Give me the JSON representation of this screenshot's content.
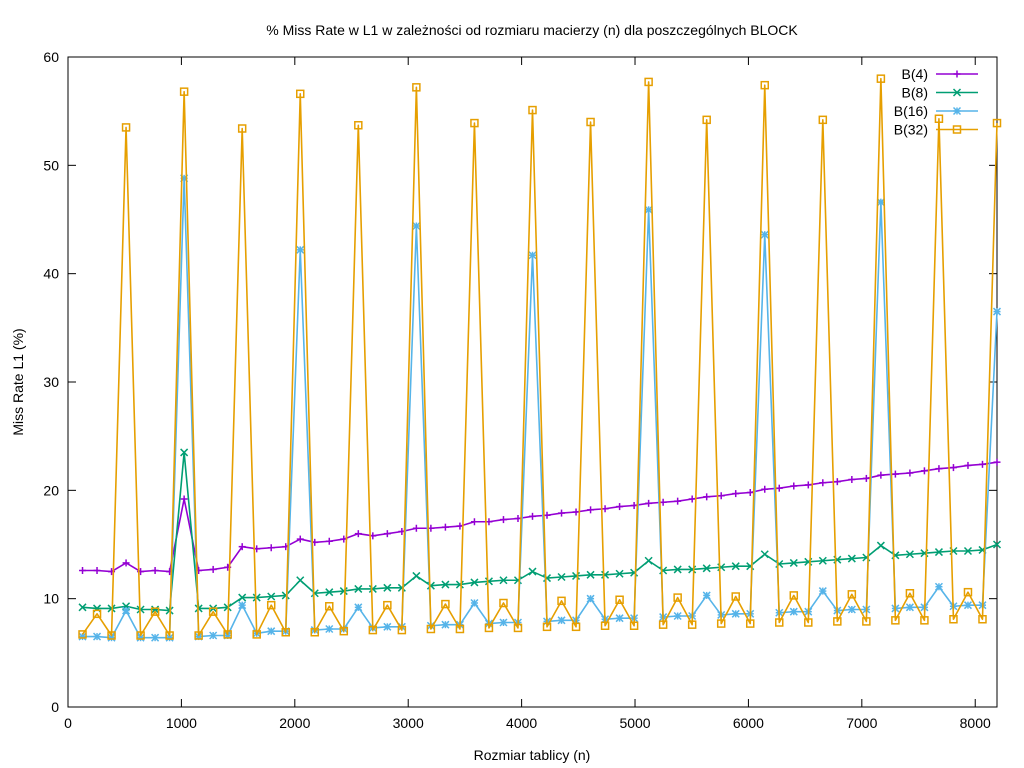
{
  "chart_data": {
    "type": "line",
    "title": "% Miss Rate w L1 w zależności od rozmiaru macierzy (n) dla poszczególnych BLOCK",
    "xlabel": "Rozmiar tablicy (n)",
    "ylabel": "Miss Rate L1 (%)",
    "xlim": [
      0,
      8192
    ],
    "ylim": [
      0,
      60
    ],
    "xticks": [
      0,
      1000,
      2000,
      3000,
      4000,
      5000,
      6000,
      7000,
      8000
    ],
    "yticks": [
      0,
      10,
      20,
      30,
      40,
      50,
      60
    ],
    "grid": false,
    "legend_position": "top-right",
    "x": [
      128,
      256,
      384,
      512,
      640,
      768,
      896,
      1024,
      1152,
      1280,
      1408,
      1536,
      1664,
      1792,
      1920,
      2048,
      2176,
      2304,
      2432,
      2560,
      2688,
      2816,
      2944,
      3072,
      3200,
      3328,
      3456,
      3584,
      3712,
      3840,
      3968,
      4096,
      4224,
      4352,
      4480,
      4608,
      4736,
      4864,
      4992,
      5120,
      5248,
      5376,
      5504,
      5632,
      5760,
      5888,
      6016,
      6144,
      6272,
      6400,
      6528,
      6656,
      6784,
      6912,
      7040,
      7168,
      7296,
      7424,
      7552,
      7680,
      7808,
      7936,
      8064,
      8192
    ],
    "series": [
      {
        "name": "B(4)",
        "color": "#9400d3",
        "marker": "plus",
        "values": [
          12.6,
          12.6,
          12.5,
          13.3,
          12.5,
          12.6,
          12.5,
          19.2,
          12.6,
          12.7,
          12.9,
          14.8,
          14.6,
          14.7,
          14.8,
          15.5,
          15.2,
          15.3,
          15.5,
          16.0,
          15.8,
          16.0,
          16.2,
          16.5,
          16.5,
          16.6,
          16.7,
          17.1,
          17.1,
          17.3,
          17.4,
          17.6,
          17.7,
          17.9,
          18.0,
          18.2,
          18.3,
          18.5,
          18.6,
          18.8,
          18.9,
          19.0,
          19.2,
          19.4,
          19.5,
          19.7,
          19.8,
          20.1,
          20.2,
          20.4,
          20.5,
          20.7,
          20.8,
          21.0,
          21.1,
          21.4,
          21.5,
          21.6,
          21.8,
          22.0,
          22.1,
          22.3,
          22.4,
          22.6
        ]
      },
      {
        "name": "B(8)",
        "color": "#009e73",
        "marker": "cross",
        "values": [
          9.2,
          9.1,
          9.1,
          9.3,
          9.0,
          9.0,
          8.9,
          23.5,
          9.1,
          9.1,
          9.2,
          10.1,
          10.1,
          10.2,
          10.3,
          11.7,
          10.5,
          10.6,
          10.7,
          10.9,
          10.9,
          11.0,
          11.0,
          12.1,
          11.2,
          11.3,
          11.3,
          11.5,
          11.6,
          11.7,
          11.7,
          12.5,
          11.9,
          12.0,
          12.1,
          12.2,
          12.2,
          12.3,
          12.4,
          13.5,
          12.6,
          12.7,
          12.7,
          12.8,
          12.9,
          13.0,
          13.0,
          14.1,
          13.2,
          13.3,
          13.4,
          13.5,
          13.6,
          13.7,
          13.8,
          14.9,
          14.0,
          14.1,
          14.2,
          14.3,
          14.4,
          14.4,
          14.5,
          15.0
        ]
      },
      {
        "name": "B(16)",
        "color": "#56b4e9",
        "marker": "star",
        "values": [
          6.5,
          6.5,
          6.4,
          8.9,
          6.4,
          6.4,
          6.4,
          48.8,
          6.5,
          6.6,
          6.6,
          9.4,
          6.8,
          7.0,
          7.0,
          42.2,
          7.1,
          7.2,
          7.2,
          9.2,
          7.3,
          7.4,
          7.4,
          44.4,
          7.5,
          7.6,
          7.6,
          9.6,
          7.7,
          7.8,
          7.8,
          41.7,
          7.9,
          8.0,
          8.0,
          10.0,
          8.1,
          8.2,
          8.2,
          45.9,
          8.3,
          8.4,
          8.4,
          10.3,
          8.5,
          8.6,
          8.6,
          43.6,
          8.7,
          8.8,
          8.8,
          10.7,
          8.9,
          9.0,
          9.0,
          46.6,
          9.1,
          9.2,
          9.2,
          11.1,
          9.3,
          9.4,
          9.4,
          36.5
        ]
      },
      {
        "name": "B(32)",
        "color": "#e69f00",
        "marker": "box",
        "values": [
          6.7,
          8.6,
          6.6,
          53.5,
          6.6,
          8.8,
          6.6,
          56.8,
          6.6,
          8.8,
          6.7,
          53.4,
          6.7,
          9.4,
          6.9,
          56.6,
          6.9,
          9.3,
          7.0,
          53.7,
          7.1,
          9.4,
          7.1,
          57.2,
          7.2,
          9.5,
          7.2,
          53.9,
          7.3,
          9.6,
          7.3,
          55.1,
          7.4,
          9.8,
          7.4,
          54.0,
          7.5,
          9.9,
          7.5,
          57.7,
          7.6,
          10.1,
          7.6,
          54.2,
          7.7,
          10.2,
          7.7,
          57.4,
          7.8,
          10.3,
          7.8,
          54.2,
          7.9,
          10.4,
          7.9,
          58.0,
          8.0,
          10.5,
          8.0,
          54.3,
          8.1,
          10.6,
          8.1,
          53.9
        ]
      }
    ]
  }
}
